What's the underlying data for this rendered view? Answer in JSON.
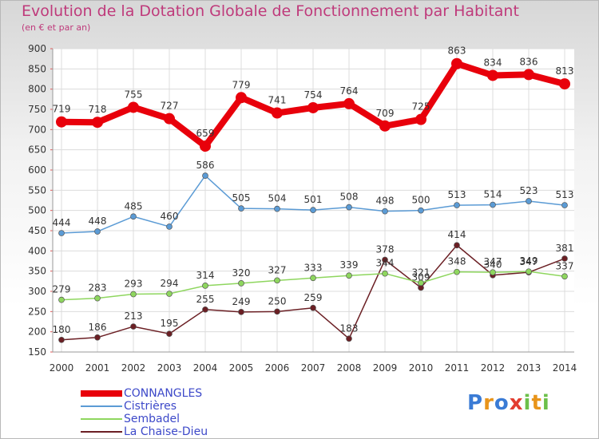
{
  "header": {
    "title": "Evolution de la Dotation Globale de Fonctionnement par Habitant",
    "subtitle": "(en € et par an)"
  },
  "chart_data": {
    "type": "line",
    "categories": [
      "2000",
      "2001",
      "2002",
      "2003",
      "2004",
      "2005",
      "2006",
      "2007",
      "2008",
      "2009",
      "2010",
      "2011",
      "2012",
      "2013",
      "2014"
    ],
    "ylim": [
      150,
      900
    ],
    "yticks": [
      150,
      200,
      250,
      300,
      350,
      400,
      450,
      500,
      550,
      600,
      650,
      700,
      750,
      800,
      850,
      900
    ],
    "grid": true,
    "legend_position": "bottom-left",
    "series": [
      {
        "name": "CONNANGLES",
        "color": "#e8000b",
        "values": [
          719,
          718,
          755,
          727,
          659,
          779,
          741,
          754,
          764,
          709,
          725,
          863,
          834,
          836,
          813
        ]
      },
      {
        "name": "Cistrières",
        "color": "#5b9bd5",
        "values": [
          444,
          448,
          485,
          460,
          586,
          505,
          504,
          501,
          508,
          498,
          500,
          513,
          514,
          523,
          513
        ]
      },
      {
        "name": "Sembadel",
        "color": "#8ed65e",
        "values": [
          279,
          283,
          293,
          294,
          314,
          320,
          327,
          333,
          339,
          344,
          321,
          348,
          347,
          349,
          337
        ]
      },
      {
        "name": "La Chaise-Dieu",
        "color": "#6b1f24",
        "values": [
          180,
          186,
          213,
          195,
          255,
          249,
          250,
          259,
          183,
          378,
          309,
          414,
          340,
          347,
          381
        ]
      }
    ]
  },
  "brand": {
    "name": "Proxiti",
    "letters": [
      "P",
      "r",
      "o",
      "x",
      "i",
      "t",
      "i"
    ],
    "colors": [
      "#3a7bd5",
      "#e8941a",
      "#3a7bd5",
      "#e23c2f",
      "#6cc04a",
      "#e8941a",
      "#6cc04a"
    ]
  }
}
